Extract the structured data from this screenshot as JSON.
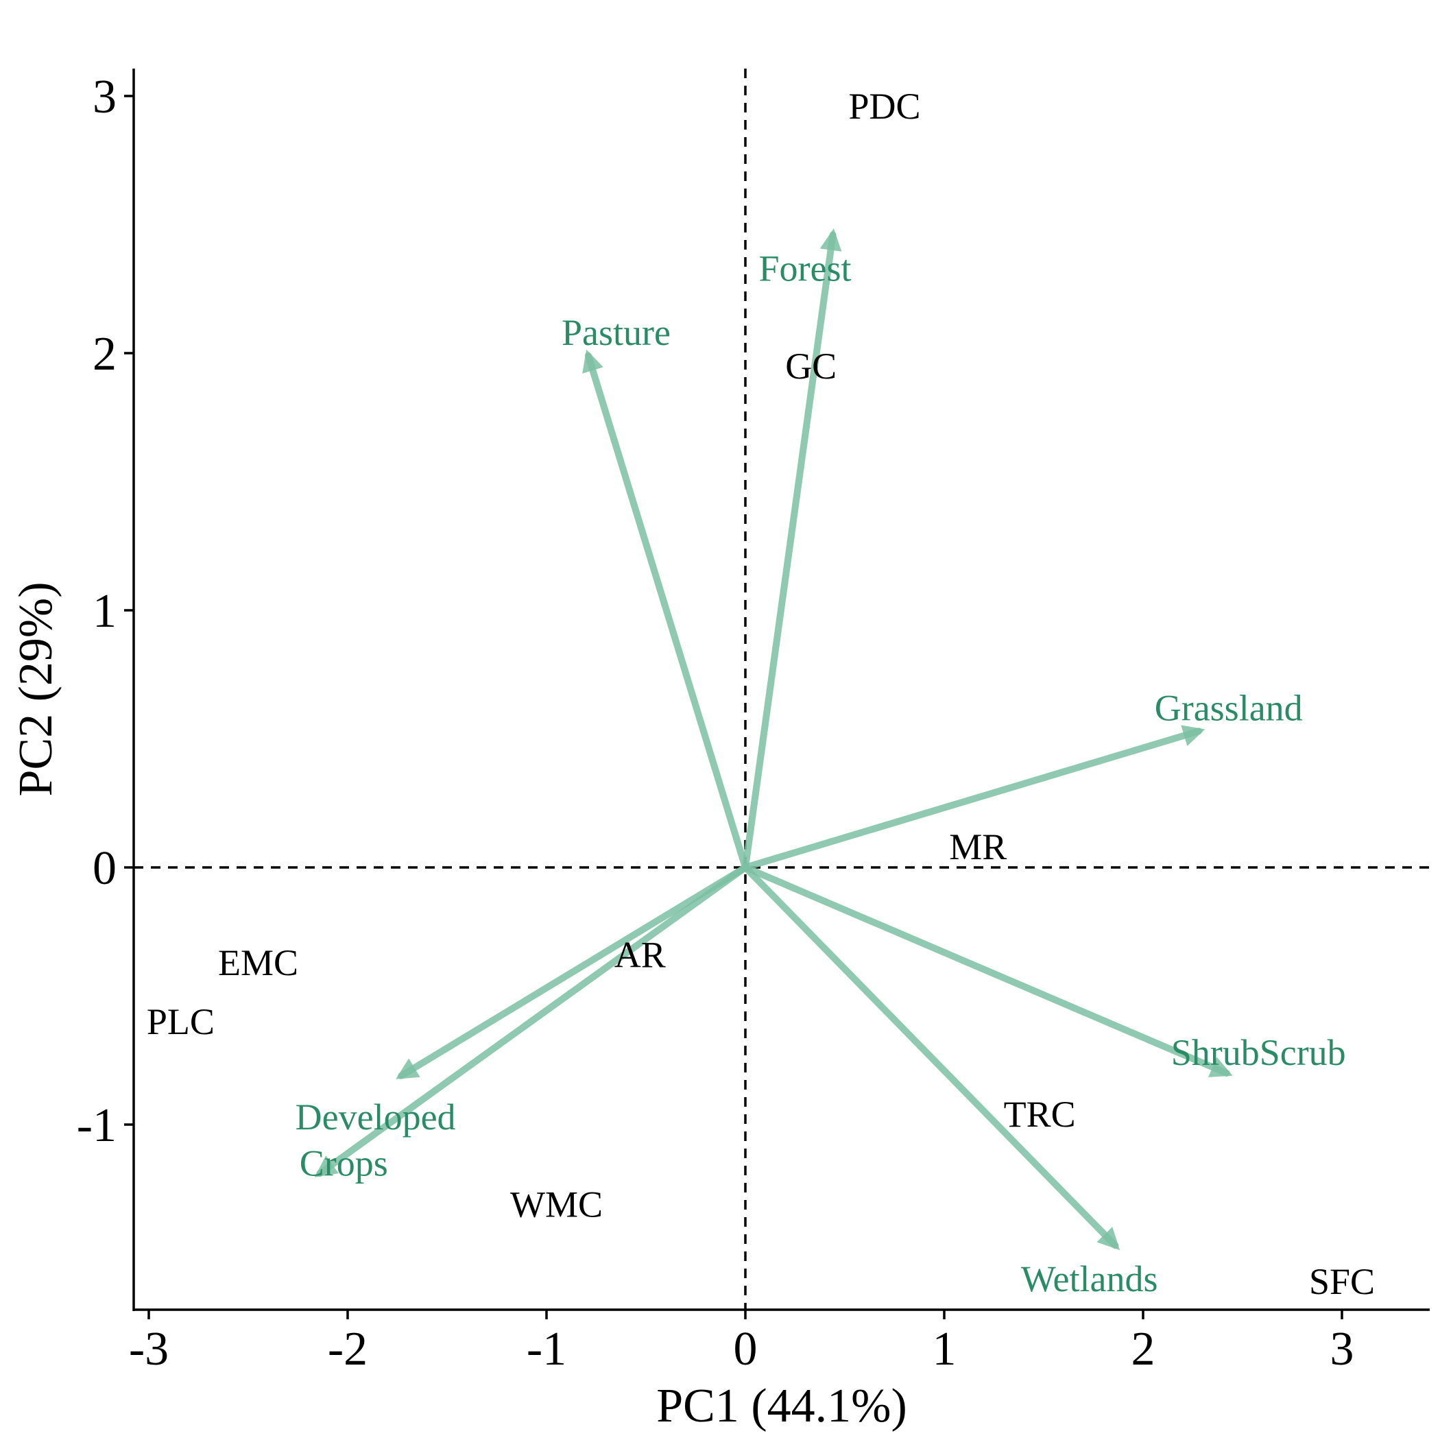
{
  "chart_data": {
    "type": "scatter",
    "subtype": "pca-biplot",
    "xlabel": "PC1 (44.1%)",
    "ylabel": "PC2 (29%)",
    "xlim": [
      -3.08,
      3.42
    ],
    "ylim": [
      -1.72,
      3.12
    ],
    "x_ticks": [
      -3,
      -2,
      -1,
      0,
      1,
      2,
      3
    ],
    "x_tick_labels": [
      "-3",
      "-2",
      "-1",
      "0",
      "1",
      "2",
      "3"
    ],
    "y_ticks": [
      -1,
      0,
      1,
      2,
      3
    ],
    "y_tick_labels": [
      "-1",
      "0",
      "1",
      "2",
      "3"
    ],
    "reference_lines": {
      "x0": true,
      "y0": true,
      "style": "dashed"
    },
    "grid": false,
    "arrow_color": "#7dbfa3",
    "variable_label_color": "#2a8c66",
    "observation_label_color": "#000000",
    "observations": [
      {
        "label": "PDC",
        "x": 0.7,
        "y": 2.96
      },
      {
        "label": "GC",
        "x": 0.33,
        "y": 1.95
      },
      {
        "label": "MR",
        "x": 1.17,
        "y": 0.08
      },
      {
        "label": "AR",
        "x": -0.53,
        "y": -0.34
      },
      {
        "label": "EMC",
        "x": -2.45,
        "y": -0.37
      },
      {
        "label": "PLC",
        "x": -2.84,
        "y": -0.6
      },
      {
        "label": "WMC",
        "x": -0.95,
        "y": -1.31
      },
      {
        "label": "TRC",
        "x": 1.48,
        "y": -0.96
      },
      {
        "label": "SFC",
        "x": 3.0,
        "y": -1.61
      }
    ],
    "variables": [
      {
        "label": "Forest",
        "x": 0.44,
        "y": 2.46,
        "label_x": 0.3,
        "label_y": 2.33
      },
      {
        "label": "Pasture",
        "x": -0.79,
        "y": 1.99,
        "label_x": -0.65,
        "label_y": 2.08
      },
      {
        "label": "Grassland",
        "x": 2.28,
        "y": 0.53,
        "label_x": 2.43,
        "label_y": 0.62
      },
      {
        "label": "ShrubScrub",
        "x": 2.42,
        "y": -0.8,
        "label_x": 2.58,
        "label_y": -0.72
      },
      {
        "label": "Wetlands",
        "x": 1.86,
        "y": -1.47,
        "label_x": 1.73,
        "label_y": -1.6
      },
      {
        "label": "Developed",
        "x": -1.73,
        "y": -0.81,
        "label_x": -1.86,
        "label_y": -0.97
      },
      {
        "label": "Crops",
        "x": -2.14,
        "y": -1.19,
        "label_x": -2.02,
        "label_y": -1.15
      }
    ]
  }
}
